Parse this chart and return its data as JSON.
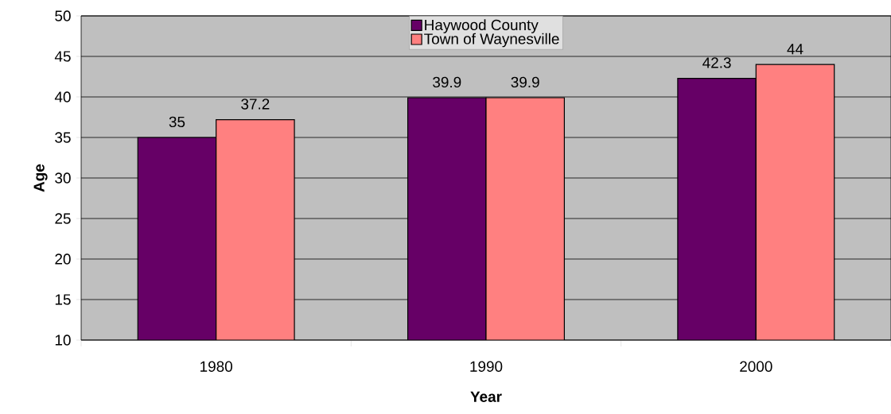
{
  "chart_data": {
    "type": "bar",
    "xlabel": "Year",
    "ylabel": "Age",
    "categories": [
      "1980",
      "1990",
      "2000"
    ],
    "series": [
      {
        "name": "Haywood County",
        "color": "#660066",
        "values": [
          35,
          39.9,
          42.3
        ]
      },
      {
        "name": "Town of Waynesville",
        "color": "#ff8080",
        "values": [
          37.2,
          39.9,
          44
        ]
      }
    ],
    "ylim": [
      10,
      50
    ],
    "yticks": [
      10,
      15,
      20,
      25,
      30,
      35,
      40,
      45,
      50
    ],
    "grid": "y",
    "legend": "top",
    "data_labels": true
  }
}
